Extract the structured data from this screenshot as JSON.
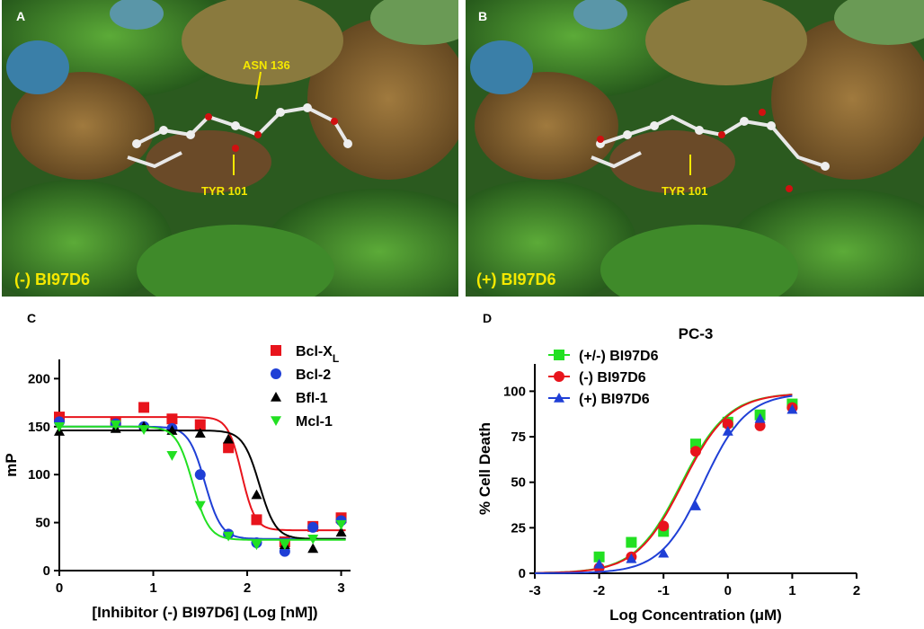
{
  "panels": {
    "A": {
      "letter": "A",
      "compound": "(-) BI97D6",
      "residues": [
        "ASN 136",
        "TYR 101"
      ]
    },
    "B": {
      "letter": "B",
      "compound": "(+) BI97D6",
      "residues": [
        "TYR 101"
      ]
    }
  },
  "colors": {
    "label_yellow": "#f5e800",
    "surface_green": "#3f8a2a",
    "surface_brown": "#8a6a3a",
    "surface_blue": "#3a7fa8"
  },
  "chart_data": [
    {
      "panel": "C",
      "type": "scatter",
      "title": "",
      "xlabel": "[Inhibitor (-) BI97D6]    (Log [nM])",
      "ylabel": "mP",
      "xlim": [
        0,
        3.1
      ],
      "ylim": [
        0,
        220
      ],
      "xticks": [
        0,
        1,
        2,
        3
      ],
      "yticks": [
        0,
        50,
        100,
        150,
        200
      ],
      "legend_position": "top-right",
      "series": [
        {
          "name": "Bcl-X",
          "name_sub": "L",
          "color": "#e8141c",
          "marker": "square",
          "x": [
            0,
            0.6,
            0.9,
            1.2,
            1.5,
            1.8,
            2.1,
            2.4,
            2.7,
            3.0
          ],
          "y": [
            160,
            155,
            170,
            158,
            152,
            128,
            53,
            30,
            46,
            55
          ],
          "fit": {
            "top": 160,
            "bottom": 42,
            "logec50": 1.94,
            "hill": 6
          }
        },
        {
          "name": "Bcl-2",
          "color": "#1f3fd6",
          "marker": "circle",
          "x": [
            0,
            0.6,
            0.9,
            1.2,
            1.5,
            1.8,
            2.1,
            2.4,
            2.7,
            3.0
          ],
          "y": [
            155,
            153,
            150,
            148,
            100,
            38,
            29,
            20,
            45,
            52
          ],
          "fit": {
            "top": 150,
            "bottom": 33,
            "logec50": 1.55,
            "hill": 5
          }
        },
        {
          "name": "Bfl-1",
          "color": "#000000",
          "marker": "triangle-up",
          "x": [
            0,
            0.6,
            0.9,
            1.2,
            1.5,
            1.8,
            2.1,
            2.4,
            2.7,
            3.0
          ],
          "y": [
            145,
            148,
            150,
            146,
            143,
            137,
            79,
            27,
            23,
            40
          ],
          "fit": {
            "top": 146,
            "bottom": 33,
            "logec50": 2.13,
            "hill": 5
          }
        },
        {
          "name": "Mcl-1",
          "color": "#22e022",
          "marker": "triangle-down",
          "x": [
            0,
            0.6,
            0.9,
            1.2,
            1.5,
            1.8,
            2.1,
            2.4,
            2.7,
            3.0
          ],
          "y": [
            150,
            152,
            147,
            120,
            68,
            36,
            27,
            27,
            33,
            48
          ],
          "fit": {
            "top": 150,
            "bottom": 32,
            "logec50": 1.42,
            "hill": 5
          }
        }
      ]
    },
    {
      "panel": "D",
      "type": "scatter",
      "title": "PC-3",
      "xlabel": "Log Concentration (μM)",
      "ylabel": "% Cell Death",
      "xlim": [
        -3,
        2
      ],
      "ylim": [
        0,
        115
      ],
      "xticks": [
        -3,
        -2,
        -1,
        0,
        1,
        2
      ],
      "yticks": [
        0,
        25,
        50,
        75,
        100
      ],
      "legend_position": "top-left",
      "series": [
        {
          "name": "(+/-) BI97D6",
          "color": "#22e022",
          "marker": "square",
          "x": [
            -2,
            -1.5,
            -1,
            -0.5,
            0,
            0.5,
            1
          ],
          "y": [
            9,
            17,
            23,
            71,
            83,
            87,
            93
          ],
          "fit": {
            "top": 99,
            "bottom": 0,
            "logec50": -0.72,
            "hill": 1.2
          }
        },
        {
          "name": "(-)  BI97D6",
          "color": "#e8141c",
          "marker": "circle",
          "x": [
            -2,
            -1.5,
            -1,
            -0.5,
            0,
            0.5,
            1
          ],
          "y": [
            3,
            9,
            26,
            67,
            82,
            81,
            91
          ],
          "fit": {
            "top": 99,
            "bottom": 0,
            "logec50": -0.7,
            "hill": 1.2
          }
        },
        {
          "name": "(+) BI97D6",
          "color": "#1f3fd6",
          "marker": "triangle-up",
          "x": [
            -2,
            -1.5,
            -1,
            -0.5,
            0,
            0.5,
            1
          ],
          "y": [
            5,
            8,
            11,
            37,
            78,
            85,
            90
          ],
          "fit": {
            "top": 99,
            "bottom": 0,
            "logec50": -0.38,
            "hill": 1.3
          }
        }
      ]
    }
  ]
}
